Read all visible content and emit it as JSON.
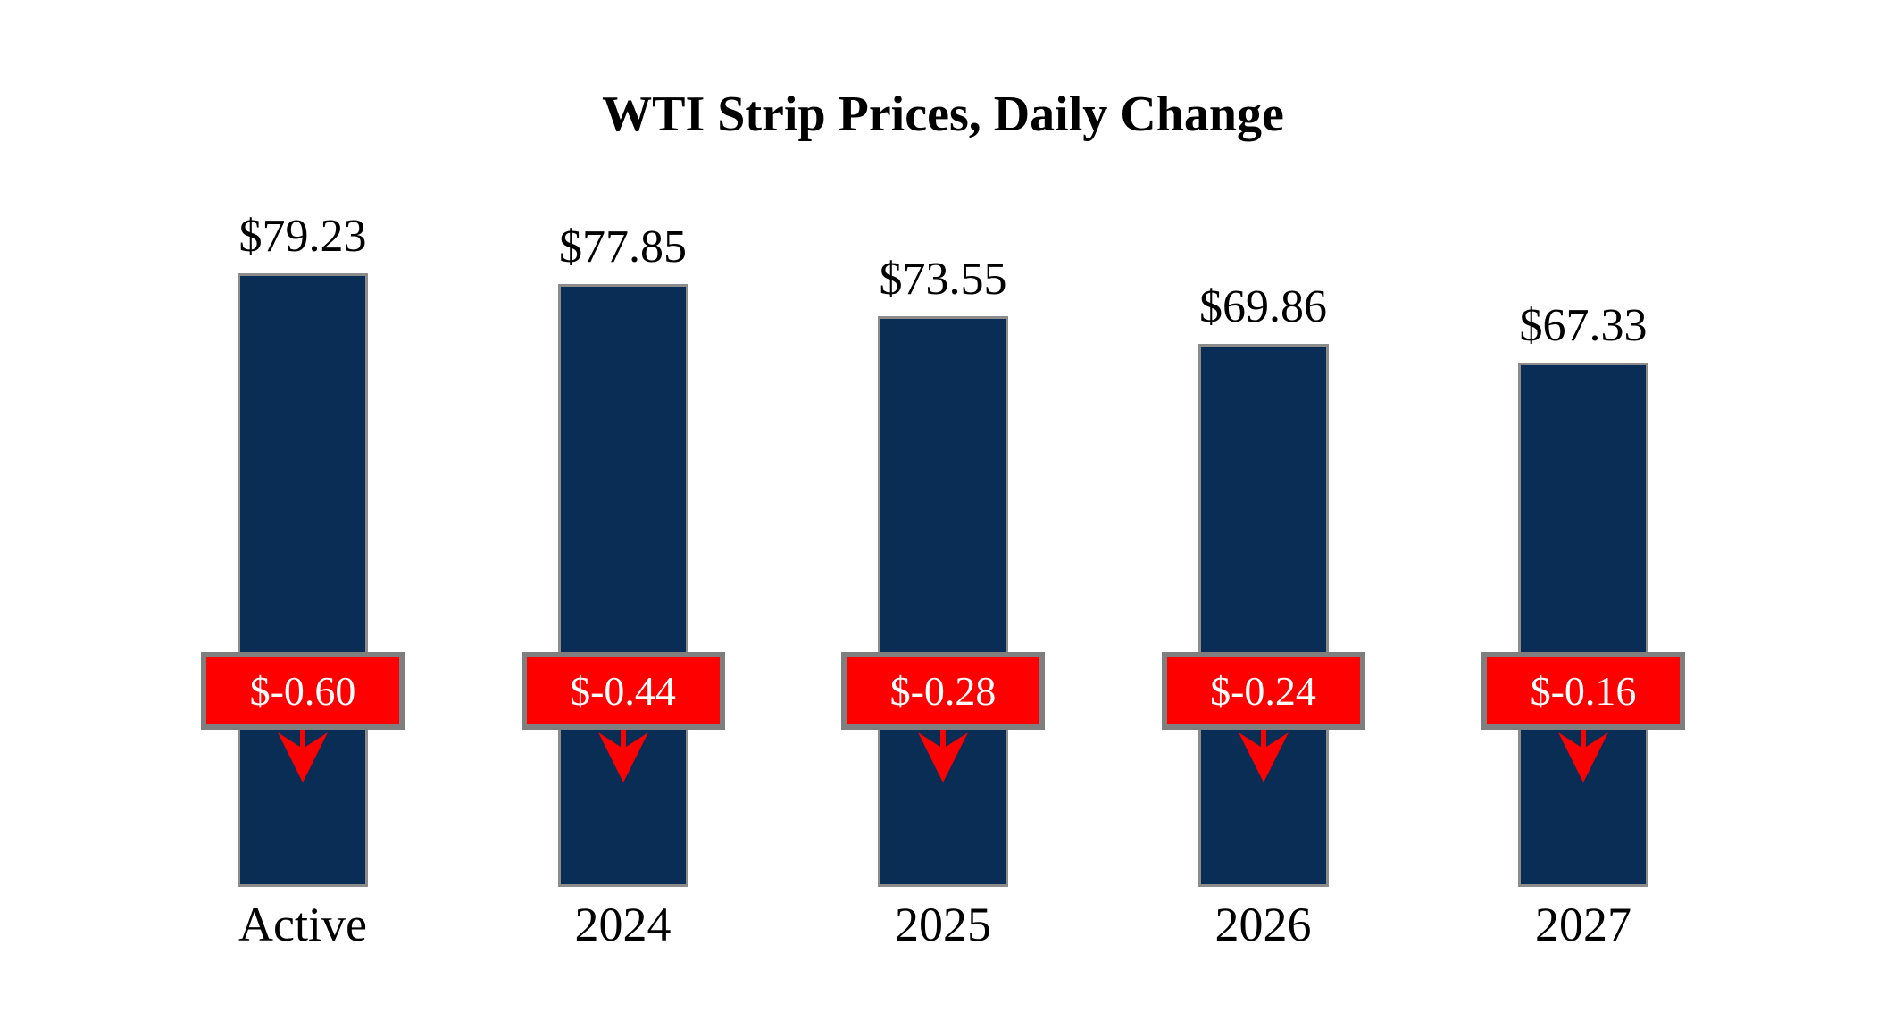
{
  "title": "WTI Strip Prices, Daily Change",
  "colors": {
    "background": "#ffffff",
    "text": "#000000",
    "bar": "#0a2d55",
    "bar_border": "#8c8c8c",
    "badge_bg": "#ff0000",
    "badge_border": "#7f7f7f",
    "badge_text": "#ffffff",
    "arrow": "#ff0000"
  },
  "chart_data": {
    "type": "bar",
    "title": "WTI Strip Prices, Daily Change",
    "categories": [
      "Active",
      "2024",
      "2025",
      "2026",
      "2027"
    ],
    "series": [
      {
        "name": "Strip Price",
        "values": [
          79.23,
          77.85,
          73.55,
          69.86,
          67.33
        ],
        "labels": [
          "$79.23",
          "$77.85",
          "$73.55",
          "$69.86",
          "$67.33"
        ],
        "label_position": "above-bar"
      },
      {
        "name": "Daily Change",
        "values": [
          -0.6,
          -0.44,
          -0.28,
          -0.24,
          -0.16
        ],
        "labels": [
          "$-0.60",
          "$-0.44",
          "$-0.28",
          "$-0.24",
          "$-0.16"
        ],
        "label_position": "badge-on-bar",
        "direction_icon": "down-arrow"
      }
    ],
    "xlabel": "",
    "ylabel": "",
    "value_axis_visible": false,
    "gridlines": false,
    "legend": "none",
    "bar_color": "#0a2d55",
    "change_badge_color": "#ff0000"
  }
}
